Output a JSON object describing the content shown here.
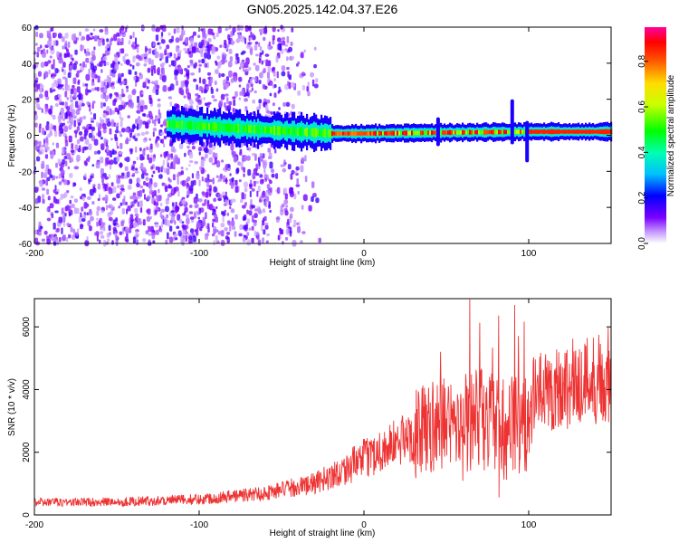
{
  "figure": {
    "title": "GN05.2025.142.04.37.E26"
  },
  "chart_data": [
    {
      "type": "heatmap",
      "xlabel": "Height of straight line (km)",
      "ylabel": "Frequency (Hz)",
      "xlim": [
        -200,
        150
      ],
      "ylim": [
        -60,
        60
      ],
      "x_ticks": [
        -200,
        -100,
        0,
        100
      ],
      "y_ticks": [
        -60,
        -40,
        -20,
        0,
        20,
        40,
        60
      ],
      "colorbar": {
        "label": "Normalized spectral amplitude",
        "range": [
          0,
          0.95
        ],
        "ticks": [
          0.0,
          0.2,
          0.4,
          0.6,
          0.8
        ],
        "colormap": "rainbow (purple-blue-cyan-green-yellow-red-magenta)"
      },
      "description_values": {
        "noise_region_x": [
          -200,
          -30
        ],
        "band_center_freq": [
          {
            "x": -115,
            "f": 6
          },
          {
            "x": -80,
            "f": 4
          },
          {
            "x": -40,
            "f": 2
          },
          {
            "x": -20,
            "f": 1
          },
          {
            "x": 0,
            "f": 1
          },
          {
            "x": 50,
            "f": 1.5
          },
          {
            "x": 100,
            "f": 2
          },
          {
            "x": 150,
            "f": 2
          }
        ],
        "spikes": [
          {
            "x": 45,
            "f_range": [
              -6,
              10
            ]
          },
          {
            "x": 90,
            "f_range": [
              -5,
              20
            ]
          },
          {
            "x": 99,
            "f_range": [
              -15,
              8
            ]
          }
        ]
      },
      "grid": false
    },
    {
      "type": "line",
      "xlabel": "Height of straight line (km)",
      "ylabel": "SNR (10 * v/v)",
      "xlim": [
        -200,
        150
      ],
      "ylim": [
        0,
        6900
      ],
      "x_ticks": [
        -200,
        -100,
        0,
        100
      ],
      "y_ticks": [
        0,
        2000,
        4000,
        6000
      ],
      "series_color": "#ee3333",
      "trend": [
        {
          "x": -200,
          "y": 400
        },
        {
          "x": -150,
          "y": 420
        },
        {
          "x": -100,
          "y": 500
        },
        {
          "x": -60,
          "y": 700
        },
        {
          "x": -30,
          "y": 1000
        },
        {
          "x": -10,
          "y": 1500
        },
        {
          "x": 0,
          "y": 1800
        },
        {
          "x": 20,
          "y": 2300
        },
        {
          "x": 40,
          "y": 2800
        },
        {
          "x": 60,
          "y": 3000
        },
        {
          "x": 80,
          "y": 3000
        },
        {
          "x": 100,
          "y": 2800
        },
        {
          "x": 103,
          "y": 3800
        },
        {
          "x": 120,
          "y": 4100
        },
        {
          "x": 150,
          "y": 4500
        }
      ],
      "grid": false
    }
  ]
}
